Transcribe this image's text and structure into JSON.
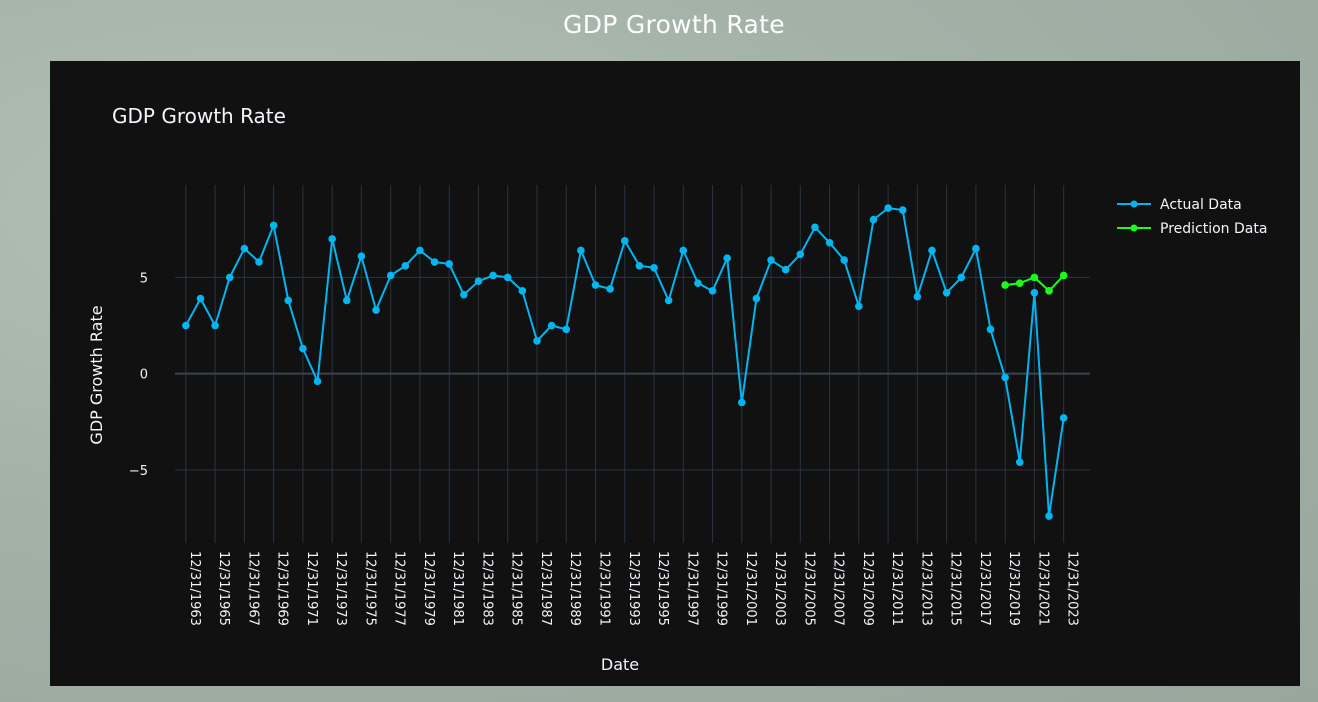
{
  "page": {
    "title": "GDP Growth Rate"
  },
  "colors": {
    "actual": "#00b5f0",
    "prediction": "#19ff19",
    "grid": "#283442",
    "zeroline": "#3a4350",
    "panel": "#111111"
  },
  "chart_data": {
    "type": "line",
    "title": "GDP Growth Rate",
    "xlabel": "Date",
    "ylabel": "GDP Growth Rate",
    "ylim": [
      -8.8,
      9.8
    ],
    "yticks": [
      -5,
      0,
      5
    ],
    "ytick_labels": [
      "−5",
      "0",
      "5"
    ],
    "xticks": [
      "12/31/1963",
      "12/31/1965",
      "12/31/1967",
      "12/31/1969",
      "12/31/1971",
      "12/31/1973",
      "12/31/1975",
      "12/31/1977",
      "12/31/1979",
      "12/31/1981",
      "12/31/1983",
      "12/31/1985",
      "12/31/1987",
      "12/31/1989",
      "12/31/1991",
      "12/31/1993",
      "12/31/1995",
      "12/31/1997",
      "12/31/1999",
      "12/31/2001",
      "12/31/2003",
      "12/31/2005",
      "12/31/2007",
      "12/31/2009",
      "12/31/2011",
      "12/31/2013",
      "12/31/2015",
      "12/31/2017",
      "12/31/2019",
      "12/31/2021",
      "12/31/2023"
    ],
    "xrange": [
      1962.6,
      2024.8
    ],
    "grid": true,
    "legend": "top-right",
    "series": [
      {
        "name": "Actual Data",
        "x": [
          1963,
          1964,
          1965,
          1966,
          1967,
          1968,
          1969,
          1970,
          1971,
          1972,
          1973,
          1974,
          1975,
          1976,
          1977,
          1978,
          1979,
          1980,
          1981,
          1982,
          1983,
          1984,
          1985,
          1986,
          1987,
          1988,
          1989,
          1990,
          1991,
          1992,
          1993,
          1994,
          1995,
          1996,
          1997,
          1998,
          1999,
          2000,
          2001,
          2002,
          2003,
          2004,
          2005,
          2006,
          2007,
          2008,
          2009,
          2010,
          2011,
          2012,
          2013,
          2014,
          2015,
          2016,
          2017,
          2018,
          2019,
          2020,
          2021,
          2022,
          2023
        ],
        "y": [
          2.5,
          3.9,
          2.5,
          5.0,
          6.5,
          5.8,
          7.7,
          3.8,
          1.3,
          -0.4,
          7.0,
          3.8,
          6.1,
          3.3,
          5.1,
          5.6,
          6.4,
          5.8,
          5.7,
          4.1,
          4.8,
          5.1,
          5.0,
          4.3,
          1.7,
          2.5,
          2.3,
          6.4,
          4.6,
          4.4,
          6.9,
          5.6,
          5.5,
          3.8,
          6.4,
          4.7,
          4.3,
          6.0,
          -1.5,
          3.9,
          5.9,
          5.4,
          6.2,
          7.6,
          6.8,
          5.9,
          3.5,
          8.0,
          8.6,
          8.5,
          4.0,
          6.4,
          4.2,
          5.0,
          6.5,
          2.3,
          -0.2,
          -4.6,
          4.2,
          -7.4,
          -2.3
        ]
      },
      {
        "name": "Prediction Data",
        "x": [
          2019,
          2020,
          2021,
          2022,
          2023
        ],
        "y": [
          4.6,
          4.7,
          5.0,
          4.3,
          5.1
        ]
      }
    ]
  }
}
